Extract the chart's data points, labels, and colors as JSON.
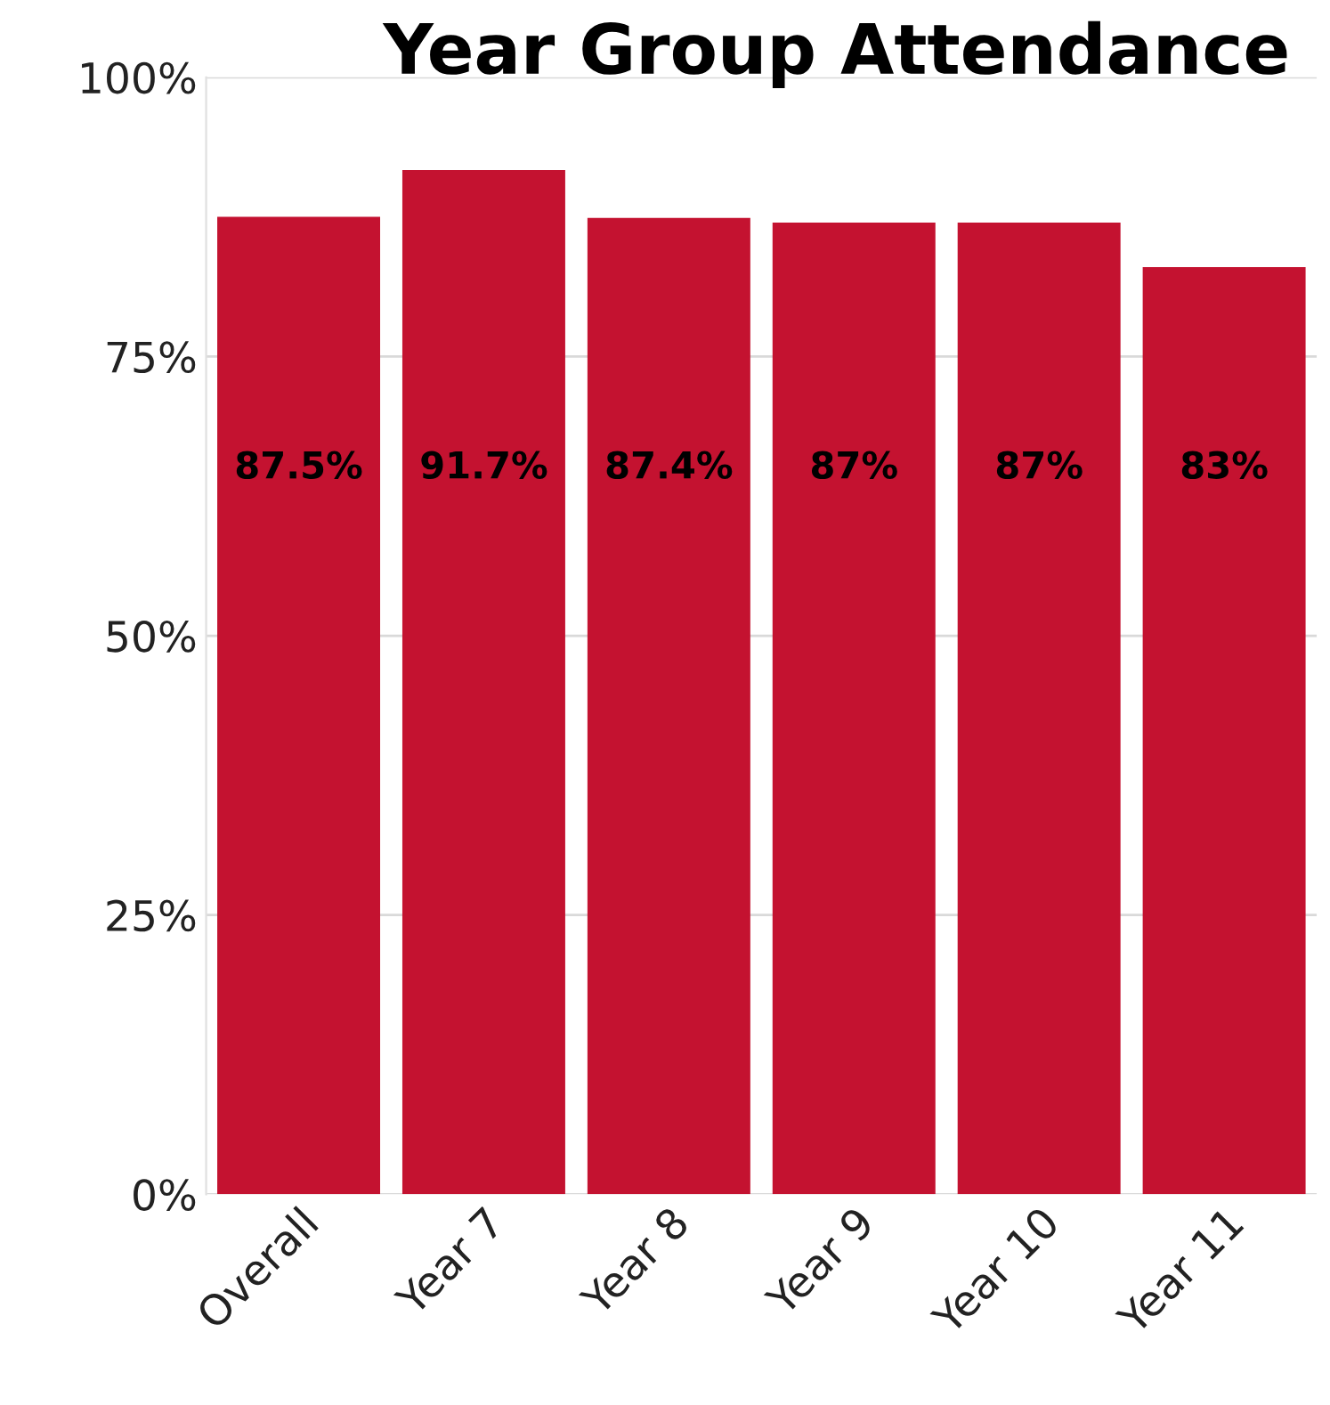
{
  "chart_data": {
    "type": "bar",
    "title": "Year Group Attendance",
    "categories": [
      "Overall",
      "Year 7",
      "Year 8",
      "Year 9",
      "Year 10",
      "Year 11"
    ],
    "values": [
      87.5,
      91.7,
      87.4,
      87,
      87,
      83
    ],
    "value_labels": [
      "87.5%",
      "91.7%",
      "87.4%",
      "87%",
      "87%",
      "83%"
    ],
    "color": "#c41230",
    "ylim": [
      0,
      100
    ],
    "yticks": [
      {
        "value": 0,
        "label": "0%"
      },
      {
        "value": 25,
        "label": "25%"
      },
      {
        "value": 50,
        "label": "50%"
      },
      {
        "value": 75,
        "label": "75%"
      },
      {
        "value": 100,
        "label": "100%"
      }
    ],
    "grid": "y",
    "legend": false
  }
}
